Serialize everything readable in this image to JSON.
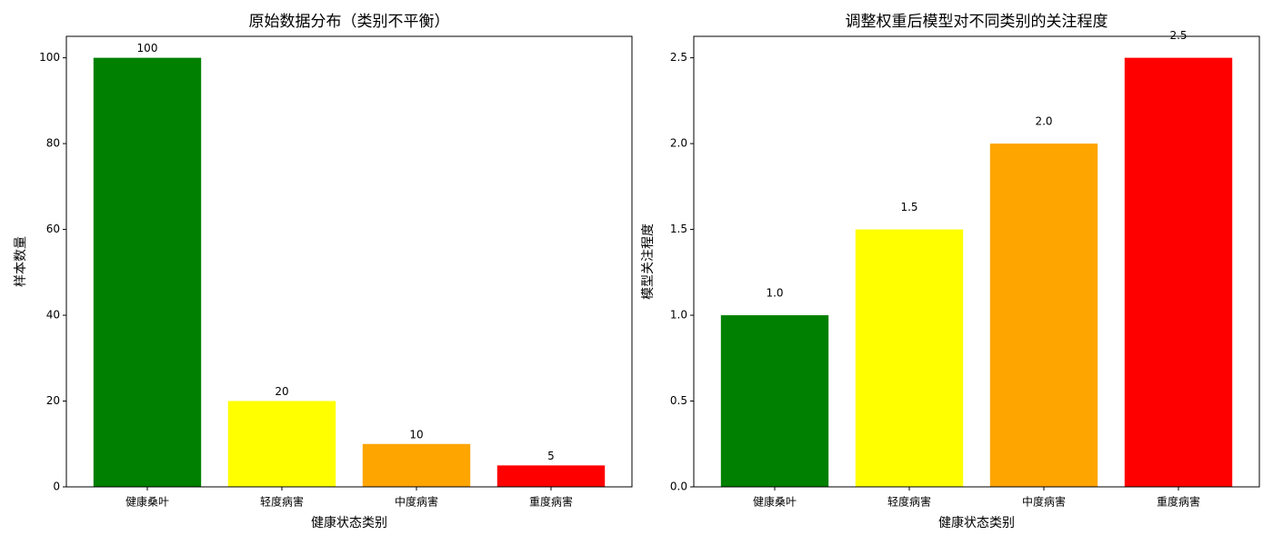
{
  "chart_data": [
    {
      "type": "bar",
      "title": "原始数据分布（类别不平衡）",
      "x_label": "健康状态类别",
      "y_label": "样本数量",
      "categories": [
        "健康桑叶",
        "轻度病害",
        "中度病害",
        "重度病害"
      ],
      "values": [
        100,
        20,
        10,
        5
      ],
      "colors": [
        "#008000",
        "#ffff00",
        "#ffa500",
        "#ff0000"
      ],
      "ylim": [
        0,
        105
      ],
      "yticks": [
        0,
        20,
        40,
        60,
        80,
        100
      ],
      "grid": false
    },
    {
      "type": "bar",
      "title": "调整权重后模型对不同类别的关注程度",
      "x_label": "健康状态类别",
      "y_label": "模型关注程度",
      "categories": [
        "健康桑叶",
        "轻度病害",
        "中度病害",
        "重度病害"
      ],
      "values": [
        1.0,
        1.5,
        2.0,
        2.5
      ],
      "value_labels": [
        "1.0",
        "1.5",
        "2.0",
        "2.5"
      ],
      "colors": [
        "#008000",
        "#ffff00",
        "#ffa500",
        "#ff0000"
      ],
      "ylim": [
        0,
        2.625
      ],
      "yticks": [
        {
          "value": 0,
          "label": "0.0"
        },
        0.5,
        {
          "value": 1,
          "label": "1.0"
        },
        1.5,
        {
          "value": 2,
          "label": "2.0"
        },
        2.5
      ],
      "grid": false
    }
  ]
}
